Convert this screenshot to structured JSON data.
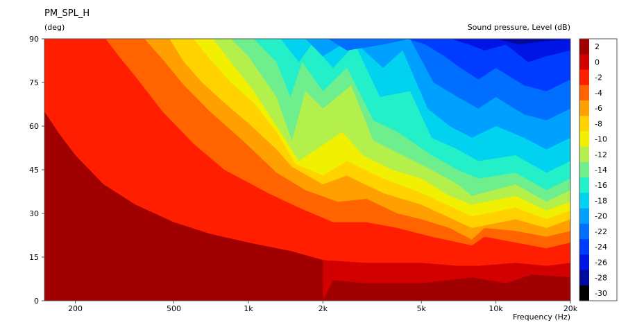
{
  "chart_data": {
    "type": "heatmap",
    "title": "PM_SPL_H",
    "ylabel": "(deg)",
    "xlabel": "Frequency  (Hz)",
    "colorbar_label": "Sound pressure, Level  (dB)",
    "x_scale": "log",
    "xlim": [
      150,
      20000
    ],
    "ylim": [
      0,
      90
    ],
    "x_ticks": [
      {
        "value": 200,
        "label": "200"
      },
      {
        "value": 500,
        "label": "500"
      },
      {
        "value": 1000,
        "label": "1k"
      },
      {
        "value": 2000,
        "label": "2k"
      },
      {
        "value": 5000,
        "label": "5k"
      },
      {
        "value": 10000,
        "label": "10k"
      },
      {
        "value": 20000,
        "label": "20k"
      }
    ],
    "y_ticks": [
      0,
      15,
      30,
      45,
      60,
      75,
      90
    ],
    "levels": [
      {
        "label": "2",
        "color": "#a00000"
      },
      {
        "label": "0",
        "color": "#d20000"
      },
      {
        "label": "-2",
        "color": "#ff1e00"
      },
      {
        "label": "-4",
        "color": "#ff6400"
      },
      {
        "label": "-6",
        "color": "#ffa000"
      },
      {
        "label": "-8",
        "color": "#ffd200"
      },
      {
        "label": "-10",
        "color": "#f0f000"
      },
      {
        "label": "-12",
        "color": "#b4f04b"
      },
      {
        "label": "-14",
        "color": "#6eee8c"
      },
      {
        "label": "-16",
        "color": "#23f0c8"
      },
      {
        "label": "-18",
        "color": "#00d2f0"
      },
      {
        "label": "-20",
        "color": "#00a0ff"
      },
      {
        "label": "-22",
        "color": "#006eff"
      },
      {
        "label": "-24",
        "color": "#003cff"
      },
      {
        "label": "-26",
        "color": "#0014e6"
      },
      {
        "label": "-28",
        "color": "#000aa0"
      },
      {
        "label": "-30",
        "color": "#000000"
      }
    ],
    "boundaries": [
      {
        "level": "0",
        "points": [
          [
            2000,
            0
          ],
          [
            2200,
            7
          ],
          [
            3000,
            6
          ],
          [
            5000,
            6
          ],
          [
            8000,
            8
          ],
          [
            11000,
            6
          ],
          [
            14000,
            9
          ],
          [
            20000,
            8
          ]
        ]
      },
      {
        "level": "-2",
        "points": [
          [
            150,
            65
          ],
          [
            170,
            58
          ],
          [
            200,
            50
          ],
          [
            260,
            40
          ],
          [
            350,
            33
          ],
          [
            500,
            27
          ],
          [
            700,
            23
          ],
          [
            1000,
            20
          ],
          [
            1500,
            17
          ],
          [
            2000,
            14
          ],
          [
            3000,
            13
          ],
          [
            5000,
            13
          ],
          [
            7000,
            12
          ],
          [
            8500,
            12
          ],
          [
            12000,
            13
          ],
          [
            16000,
            12
          ],
          [
            20000,
            13
          ]
        ]
      },
      {
        "level": "-4",
        "points": [
          [
            265,
            90
          ],
          [
            300,
            84
          ],
          [
            350,
            77
          ],
          [
            450,
            65
          ],
          [
            600,
            54
          ],
          [
            800,
            45
          ],
          [
            1200,
            37
          ],
          [
            1600,
            32
          ],
          [
            2200,
            27
          ],
          [
            3000,
            27
          ],
          [
            4000,
            25
          ],
          [
            5500,
            22
          ],
          [
            8000,
            19
          ],
          [
            9000,
            22
          ],
          [
            12000,
            20
          ],
          [
            16000,
            18
          ],
          [
            20000,
            20
          ]
        ]
      },
      {
        "level": "-6",
        "points": [
          [
            380,
            90
          ],
          [
            450,
            83
          ],
          [
            550,
            74
          ],
          [
            700,
            65
          ],
          [
            950,
            55
          ],
          [
            1300,
            44
          ],
          [
            1700,
            38
          ],
          [
            2300,
            34
          ],
          [
            3000,
            35
          ],
          [
            4000,
            30
          ],
          [
            5000,
            28
          ],
          [
            6500,
            25
          ],
          [
            8000,
            21
          ],
          [
            9000,
            25
          ],
          [
            12000,
            24
          ],
          [
            16000,
            22
          ],
          [
            20000,
            24
          ]
        ]
      },
      {
        "level": "-8",
        "points": [
          [
            480,
            90
          ],
          [
            550,
            82
          ],
          [
            650,
            75
          ],
          [
            800,
            68
          ],
          [
            1000,
            61
          ],
          [
            1300,
            52
          ],
          [
            1500,
            46
          ],
          [
            2000,
            40
          ],
          [
            2500,
            43
          ],
          [
            3500,
            37
          ],
          [
            5000,
            33
          ],
          [
            8000,
            25
          ],
          [
            12000,
            28
          ],
          [
            16000,
            25
          ],
          [
            20000,
            28
          ]
        ]
      },
      {
        "level": "-10",
        "points": [
          [
            600,
            90
          ],
          [
            700,
            83
          ],
          [
            850,
            75
          ],
          [
            1050,
            68
          ],
          [
            1300,
            58
          ],
          [
            1550,
            47
          ],
          [
            2000,
            43
          ],
          [
            2500,
            48
          ],
          [
            3500,
            42
          ],
          [
            5000,
            37
          ],
          [
            8000,
            29
          ],
          [
            12000,
            32
          ],
          [
            16000,
            28
          ],
          [
            20000,
            31
          ]
        ]
      },
      {
        "level": "-12",
        "points": [
          [
            720,
            90
          ],
          [
            850,
            82
          ],
          [
            1050,
            72
          ],
          [
            1300,
            60
          ],
          [
            1600,
            48
          ],
          [
            2400,
            58
          ],
          [
            2900,
            50
          ],
          [
            3800,
            45
          ],
          [
            5000,
            42
          ],
          [
            6500,
            36
          ],
          [
            8000,
            33
          ],
          [
            12000,
            36
          ],
          [
            16000,
            31
          ],
          [
            20000,
            34
          ]
        ]
      },
      {
        "level": "-14",
        "points": [
          [
            850,
            90
          ],
          [
            1000,
            84
          ],
          [
            1300,
            70
          ],
          [
            1500,
            55
          ],
          [
            1700,
            72
          ],
          [
            2000,
            66
          ],
          [
            2600,
            74
          ],
          [
            3200,
            55
          ],
          [
            4200,
            50
          ],
          [
            5500,
            45
          ],
          [
            7000,
            40
          ],
          [
            8000,
            36
          ],
          [
            12000,
            40
          ],
          [
            16000,
            34
          ],
          [
            20000,
            38
          ]
        ]
      },
      {
        "level": "-16",
        "points": [
          [
            1050,
            90
          ],
          [
            1300,
            82
          ],
          [
            1480,
            70
          ],
          [
            1650,
            82
          ],
          [
            2000,
            72
          ],
          [
            2500,
            80
          ],
          [
            3200,
            62
          ],
          [
            4000,
            58
          ],
          [
            5500,
            50
          ],
          [
            7000,
            45
          ],
          [
            8500,
            42
          ],
          [
            12000,
            44
          ],
          [
            16000,
            38
          ],
          [
            20000,
            42
          ]
        ]
      },
      {
        "level": "-18",
        "points": [
          [
            1350,
            90
          ],
          [
            1600,
            82
          ],
          [
            1800,
            88
          ],
          [
            2200,
            80
          ],
          [
            2700,
            88
          ],
          [
            3400,
            70
          ],
          [
            4500,
            72
          ],
          [
            5500,
            56
          ],
          [
            7000,
            52
          ],
          [
            8500,
            48
          ],
          [
            12000,
            50
          ],
          [
            16000,
            44
          ],
          [
            20000,
            48
          ]
        ]
      },
      {
        "level": "-20",
        "points": [
          [
            1700,
            90
          ],
          [
            2000,
            84
          ],
          [
            2600,
            90
          ],
          [
            3500,
            80
          ],
          [
            4200,
            86
          ],
          [
            5300,
            66
          ],
          [
            6500,
            60
          ],
          [
            8000,
            56
          ],
          [
            10000,
            60
          ],
          [
            13000,
            56
          ],
          [
            16000,
            52
          ],
          [
            20000,
            56
          ]
        ]
      },
      {
        "level": "-22",
        "points": [
          [
            2100,
            90
          ],
          [
            2500,
            86
          ],
          [
            3500,
            88
          ],
          [
            4500,
            90
          ],
          [
            5600,
            75
          ],
          [
            7000,
            70
          ],
          [
            8500,
            66
          ],
          [
            10000,
            70
          ],
          [
            13000,
            64
          ],
          [
            16000,
            62
          ],
          [
            20000,
            66
          ]
        ]
      },
      {
        "level": "-24",
        "points": [
          [
            3500,
            90
          ],
          [
            4400,
            90
          ],
          [
            5200,
            88
          ],
          [
            6200,
            84
          ],
          [
            7200,
            80
          ],
          [
            8500,
            76
          ],
          [
            10000,
            80
          ],
          [
            13000,
            74
          ],
          [
            16000,
            72
          ],
          [
            20000,
            76
          ]
        ]
      },
      {
        "level": "-26",
        "points": [
          [
            5600,
            90
          ],
          [
            6600,
            90
          ],
          [
            7800,
            88
          ],
          [
            9000,
            86
          ],
          [
            11000,
            88
          ],
          [
            13500,
            82
          ],
          [
            16000,
            84
          ],
          [
            20000,
            86
          ]
        ]
      },
      {
        "level": "-28",
        "points": [
          [
            7200,
            90
          ],
          [
            8500,
            90
          ],
          [
            10000,
            90
          ],
          [
            12500,
            88
          ],
          [
            15000,
            89
          ],
          [
            20000,
            90
          ]
        ]
      }
    ]
  }
}
